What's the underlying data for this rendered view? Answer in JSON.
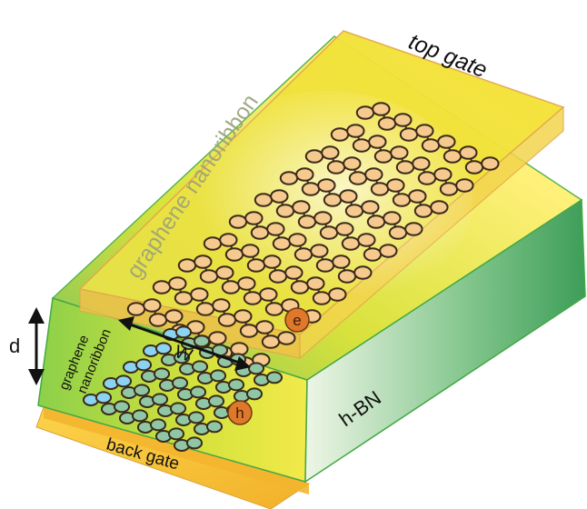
{
  "diagram": {
    "labels": {
      "top_gate": "top gate",
      "graphene_nanoribbon_top": "graphene nanoribbon",
      "electron": "e",
      "hole": "h",
      "width": "W",
      "thickness": "d",
      "hbn": "h-BN",
      "graphene_lower": "graphene",
      "nanoribbon_lower": "nanoribbon",
      "back_gate": "back gate"
    },
    "colors": {
      "top_gate": "#f2e33a",
      "back_gate": "#f5c232",
      "hbn": "#3cb44b",
      "atom_top": "#f6c98e",
      "atom_bottom": "#8fc7a6",
      "atom_edge": "#8bd3f0",
      "carrier": "#e0782c"
    }
  }
}
